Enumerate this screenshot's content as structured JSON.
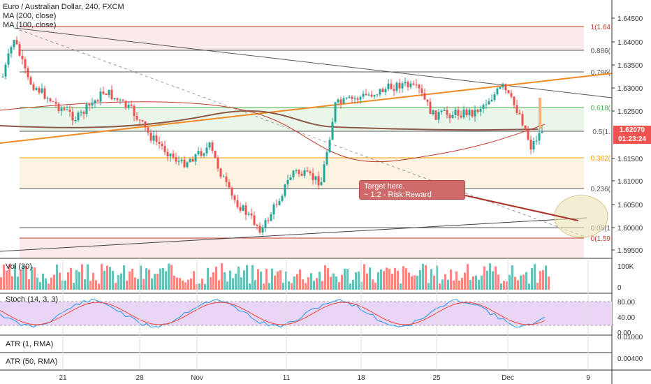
{
  "header": {
    "symbol": "Euro / Australian Dollar, 240, FXCM",
    "ma200": "MA (200, close)",
    "ma100": "MA (100, close)"
  },
  "fib": [
    {
      "label": "1(1.64",
      "color": "#c0392b",
      "fill": "#fbeaea"
    },
    {
      "label": "0.886(",
      "color": "#555555",
      "fill": "#ffffff"
    },
    {
      "label": "0.786(",
      "color": "#555555",
      "fill": "#ffffff"
    },
    {
      "label": "0.618(",
      "color": "#4caf50",
      "fill": "#eaf6ea"
    },
    {
      "label": "0.5(1.",
      "color": "#555555",
      "fill": "#ffffff"
    },
    {
      "label": "0.382(",
      "color": "#f39c12",
      "fill": "#fdf3e2"
    },
    {
      "label": "0.236(",
      "color": "#555555",
      "fill": "#ffffff"
    },
    {
      "label": "0.05(1",
      "color": "#555555",
      "fill": "#ffffff"
    },
    {
      "label": "0(1.59",
      "color": "#c0392b",
      "fill": "#ffffff"
    }
  ],
  "price_axis": [
    "1.64500",
    "1.64000",
    "1.63500",
    "1.63000",
    "1.62500",
    "1.61500",
    "1.61000",
    "1.60500",
    "1.60000",
    "1.59500"
  ],
  "last_price": {
    "price": "1.62070",
    "countdown": "01:23:24",
    "color": "#ef5350"
  },
  "annotation": {
    "line1": "Target here.",
    "line2": "~ 1:2 - Risk:Reward"
  },
  "panes": {
    "volume": {
      "label": "Vol (30)",
      "axis": [
        "100K",
        "0"
      ]
    },
    "stoch": {
      "label": "Stoch (14, 3, 3)",
      "axis": [
        "80.00",
        "40.00",
        "0.00"
      ]
    },
    "atr1": {
      "label": "ATR (1, RMA)",
      "axis": [
        "0.01000"
      ]
    },
    "atr50": {
      "label": "ATR (50, RMA)",
      "axis": [
        "0.00400"
      ]
    }
  },
  "time_axis": [
    "21",
    "28",
    "Nov",
    "11",
    "18",
    "25",
    "Dec",
    "9"
  ],
  "colors": {
    "up": "#26a69a",
    "down": "#ef5350",
    "ma200": "#8d5a4a",
    "ma100": "#c0392b",
    "trend_orange": "#f08a24",
    "stoch_k": "#2196f3",
    "stoch_d": "#f44336",
    "stoch_band": "#e9d5f5"
  }
}
